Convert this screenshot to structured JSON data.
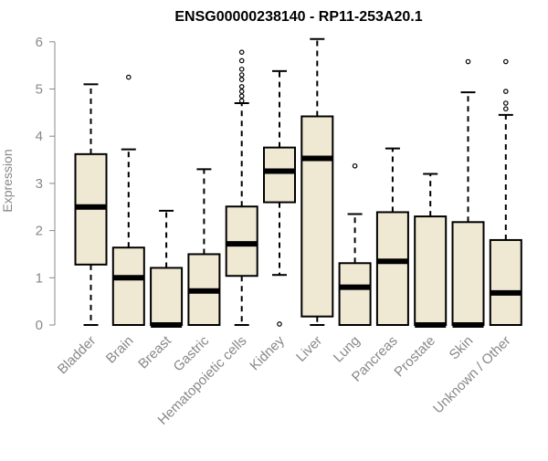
{
  "chart_data": {
    "type": "boxplot",
    "title": "ENSG00000238140 - RP11-253A20.1",
    "xlabel": "",
    "ylabel": "Expression",
    "ylim": [
      0,
      6.1
    ],
    "yticks": [
      0,
      1,
      2,
      3,
      4,
      5,
      6
    ],
    "box_fill": "#efe8d2",
    "box_stroke": "#000000",
    "axis_color": "#888888",
    "categories": [
      "Bladder",
      "Brain",
      "Breast",
      "Gastric",
      "Hematopoietic cells",
      "Kidney",
      "Liver",
      "Lung",
      "Pancreas",
      "Prostate",
      "Skin",
      "Unknown / Other"
    ],
    "boxes": [
      {
        "category": "Bladder",
        "whisker_low": 0,
        "q1": 1.28,
        "median": 2.5,
        "q3": 3.62,
        "whisker_high": 5.1,
        "outliers": []
      },
      {
        "category": "Brain",
        "whisker_low": 0,
        "q1": 0,
        "median": 1.0,
        "q3": 1.64,
        "whisker_high": 3.72,
        "outliers": [
          5.25
        ]
      },
      {
        "category": "Breast",
        "whisker_low": 0,
        "q1": 0,
        "median": 0,
        "q3": 1.21,
        "whisker_high": 2.42,
        "outliers": []
      },
      {
        "category": "Gastric",
        "whisker_low": 0,
        "q1": 0,
        "median": 0.72,
        "q3": 1.5,
        "whisker_high": 3.3,
        "outliers": []
      },
      {
        "category": "Hematopoietic cells",
        "whisker_low": 0,
        "q1": 1.04,
        "median": 1.72,
        "q3": 2.51,
        "whisker_high": 4.7,
        "outliers": [
          4.75,
          4.85,
          4.95,
          5.05,
          5.2,
          5.3,
          5.42,
          5.6,
          5.78
        ]
      },
      {
        "category": "Kidney",
        "whisker_low": 1.06,
        "q1": 2.6,
        "median": 3.26,
        "q3": 3.76,
        "whisker_high": 5.38,
        "outliers": [
          0.02
        ]
      },
      {
        "category": "Liver",
        "whisker_low": 0,
        "q1": 0.18,
        "median": 3.53,
        "q3": 4.42,
        "whisker_high": 6.06,
        "outliers": []
      },
      {
        "category": "Lung",
        "whisker_low": 0,
        "q1": 0,
        "median": 0.8,
        "q3": 1.31,
        "whisker_high": 2.35,
        "outliers": [
          3.37
        ]
      },
      {
        "category": "Pancreas",
        "whisker_low": 0,
        "q1": 0,
        "median": 1.35,
        "q3": 2.39,
        "whisker_high": 3.74,
        "outliers": []
      },
      {
        "category": "Prostate",
        "whisker_low": 0,
        "q1": 0,
        "median": 0,
        "q3": 2.3,
        "whisker_high": 3.2,
        "outliers": []
      },
      {
        "category": "Skin",
        "whisker_low": 0,
        "q1": 0,
        "median": 0,
        "q3": 2.18,
        "whisker_high": 4.93,
        "outliers": [
          5.58
        ]
      },
      {
        "category": "Unknown / Other",
        "whisker_low": 0,
        "q1": 0,
        "median": 0.68,
        "q3": 1.8,
        "whisker_high": 4.45,
        "outliers": [
          4.58,
          4.7,
          4.95,
          5.58
        ]
      }
    ]
  }
}
